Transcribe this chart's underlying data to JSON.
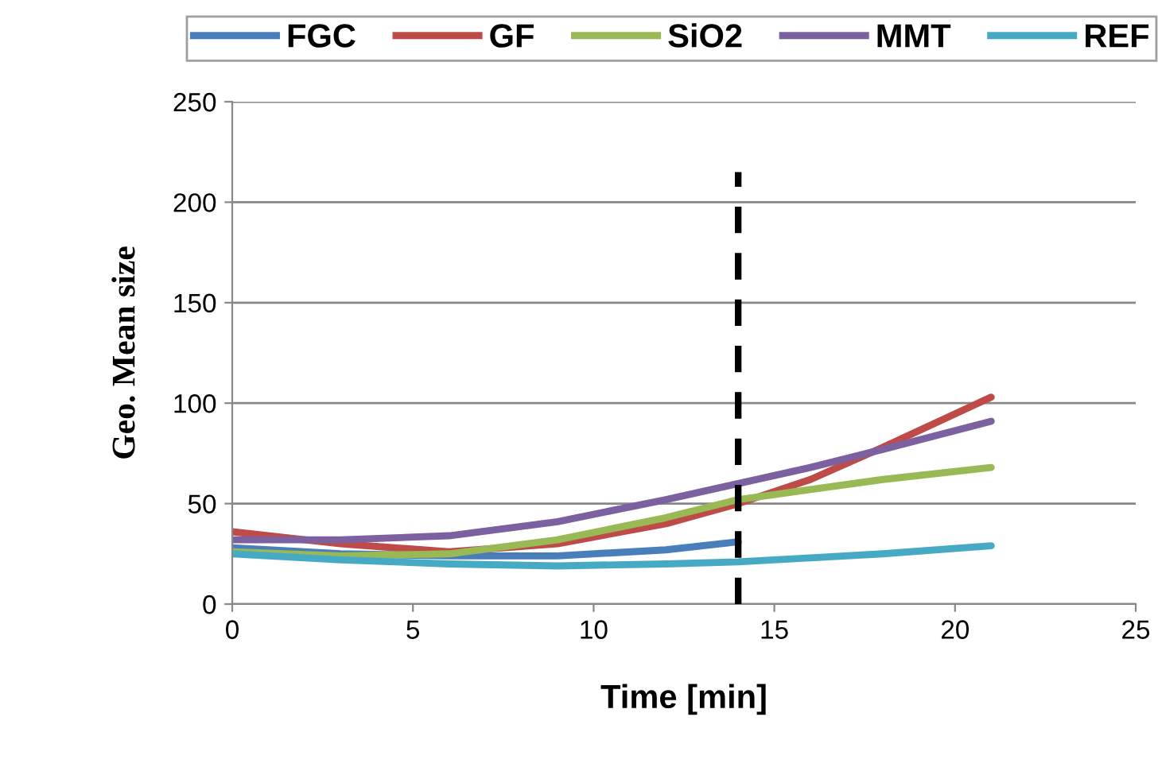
{
  "chart_data": {
    "type": "line",
    "xlabel": "Time [min]",
    "ylabel": "Geo. Mean size",
    "x": [
      0,
      3,
      6,
      9,
      12,
      14,
      16,
      18,
      21
    ],
    "series": [
      {
        "name": "FGC",
        "color": "#4a7ebb",
        "x": [
          0,
          3,
          6,
          9,
          12,
          14
        ],
        "values": [
          28,
          25,
          24,
          24,
          27,
          31
        ]
      },
      {
        "name": "GF",
        "color": "#be4b48",
        "values": [
          36,
          30,
          26,
          30,
          40,
          50,
          62,
          78,
          103
        ]
      },
      {
        "name": "SiO2",
        "color": "#98b954",
        "values": [
          26,
          24,
          25,
          32,
          43,
          52,
          57,
          62,
          68
        ]
      },
      {
        "name": "MMT",
        "color": "#7d60a0",
        "values": [
          32,
          32,
          34,
          41,
          52,
          60,
          68,
          77,
          91
        ]
      },
      {
        "name": "REF",
        "color": "#46aac5",
        "values": [
          25,
          22,
          20,
          19,
          20,
          21,
          23,
          25,
          29
        ]
      }
    ],
    "xlim": [
      0,
      25
    ],
    "xticks": [
      0,
      5,
      10,
      15,
      20,
      25
    ],
    "ylim": [
      0,
      250
    ],
    "yticks": [
      0,
      50,
      100,
      150,
      200,
      250
    ],
    "ref_lines": [
      {
        "axis": "x",
        "value": 14,
        "color": "#000000",
        "line_style": "dashed"
      }
    ],
    "grid": "y",
    "legend": "top",
    "marker": "none",
    "line_style": "solid"
  }
}
